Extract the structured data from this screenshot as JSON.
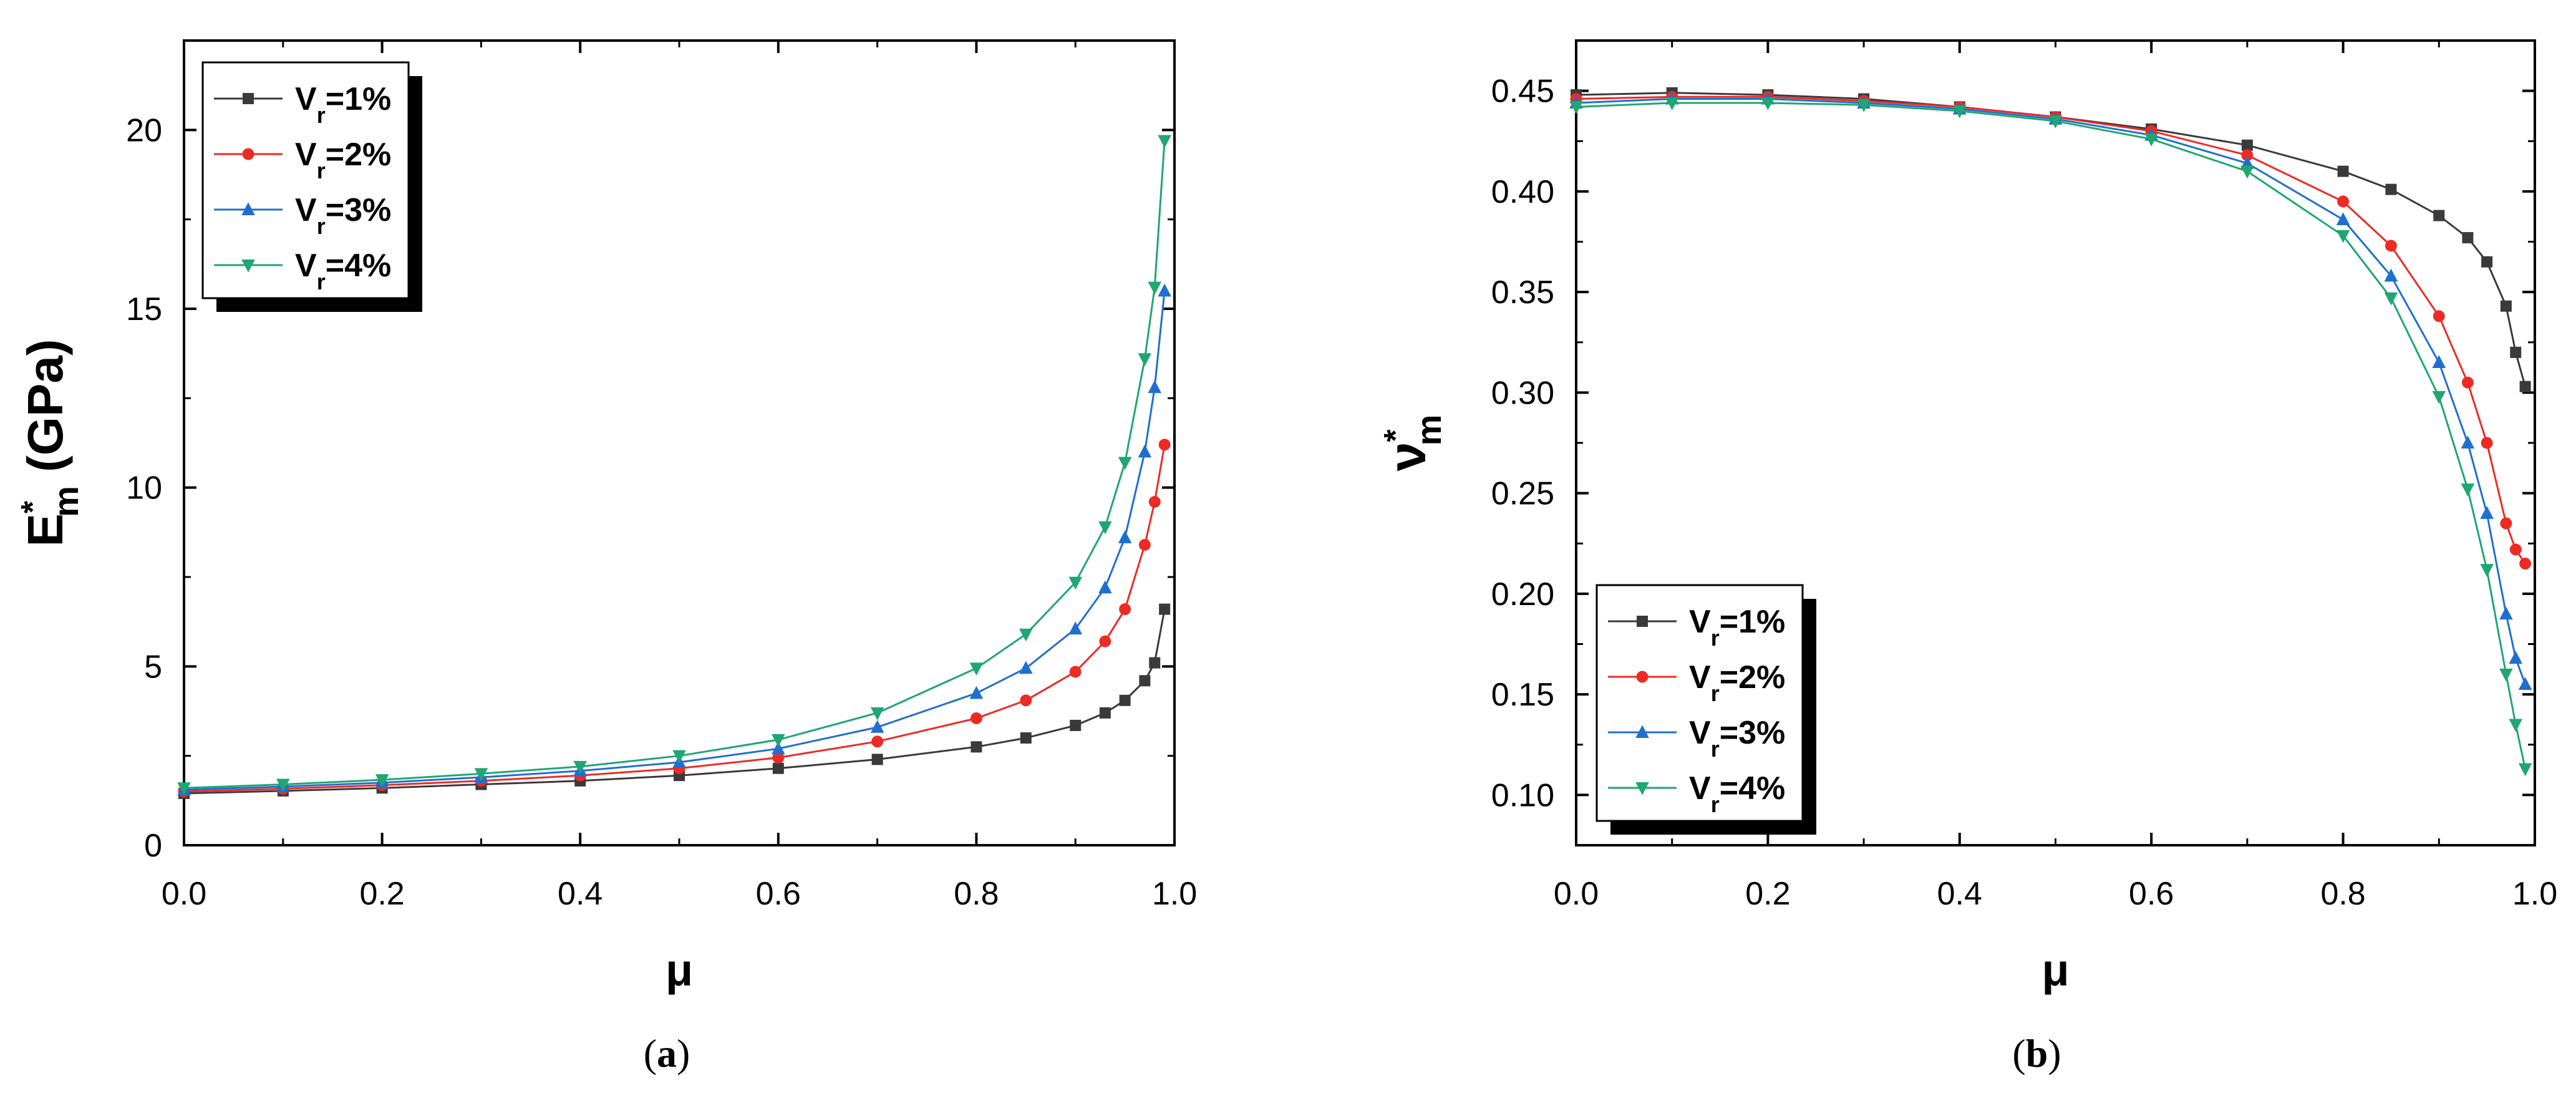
{
  "chart_data": [
    {
      "type": "line",
      "panel": "(a)",
      "panel_letter": "a",
      "xlabel": "μ",
      "ylabel_main": "E",
      "ylabel_sup": "*",
      "ylabel_sub": "m",
      "ylabel_unit": " (GPa)",
      "xlim": [
        0.0,
        1.0
      ],
      "ylim": [
        0,
        22.5
      ],
      "xticks": [
        "0.0",
        "0.2",
        "0.4",
        "0.6",
        "0.8",
        "1.0"
      ],
      "yticks": [
        "0",
        "5",
        "10",
        "15",
        "20"
      ],
      "legend_position": "top-left",
      "x": [
        0.0,
        0.1,
        0.2,
        0.3,
        0.4,
        0.5,
        0.6,
        0.7,
        0.8,
        0.85,
        0.9,
        0.93,
        0.95,
        0.97,
        0.98,
        0.99
      ],
      "series": [
        {
          "name": "Vr=1%",
          "label_main": "V",
          "label_sub": "r",
          "label_rest": "=1%",
          "color": "#3a3a3a",
          "marker": "square",
          "values": [
            1.45,
            1.52,
            1.6,
            1.7,
            1.8,
            1.95,
            2.15,
            2.4,
            2.75,
            3.0,
            3.35,
            3.7,
            4.05,
            4.6,
            5.1,
            6.6
          ]
        },
        {
          "name": "Vr=2%",
          "label_main": "V",
          "label_sub": "r",
          "label_rest": "=2%",
          "color": "#ee2a24",
          "marker": "circle",
          "values": [
            1.5,
            1.58,
            1.68,
            1.8,
            1.95,
            2.15,
            2.45,
            2.9,
            3.55,
            4.05,
            4.85,
            5.7,
            6.6,
            8.4,
            9.6,
            11.2
          ]
        },
        {
          "name": "Vr=3%",
          "label_main": "V",
          "label_sub": "r",
          "label_rest": "=3%",
          "color": "#1f6fd1",
          "marker": "triangle-up",
          "values": [
            1.55,
            1.64,
            1.75,
            1.9,
            2.08,
            2.32,
            2.7,
            3.3,
            4.25,
            4.95,
            6.05,
            7.2,
            8.6,
            11.0,
            12.8,
            15.5
          ]
        },
        {
          "name": "Vr=4%",
          "label_main": "V",
          "label_sub": "r",
          "label_rest": "=4%",
          "color": "#1fa672",
          "marker": "triangle-down",
          "values": [
            1.6,
            1.7,
            1.83,
            2.0,
            2.2,
            2.5,
            2.95,
            3.7,
            4.95,
            5.9,
            7.35,
            8.9,
            10.7,
            13.6,
            15.6,
            19.7
          ]
        }
      ]
    },
    {
      "type": "line",
      "panel": "(b)",
      "panel_letter": "b",
      "xlabel": "μ",
      "ylabel_main": "ν",
      "ylabel_sup": "*",
      "ylabel_sub": "m",
      "ylabel_unit": "",
      "xlim": [
        0.0,
        1.0
      ],
      "ylim": [
        0.075,
        0.475
      ],
      "xticks": [
        "0.0",
        "0.2",
        "0.4",
        "0.6",
        "0.8",
        "1.0"
      ],
      "yticks": [
        "0.10",
        "0.15",
        "0.20",
        "0.25",
        "0.30",
        "0.35",
        "0.40",
        "0.45"
      ],
      "legend_position": "bottom-left",
      "x": [
        0.0,
        0.1,
        0.2,
        0.3,
        0.4,
        0.5,
        0.6,
        0.7,
        0.8,
        0.85,
        0.9,
        0.93,
        0.95,
        0.97,
        0.98,
        0.99
      ],
      "series": [
        {
          "name": "Vr=1%",
          "label_main": "V",
          "label_sub": "r",
          "label_rest": "=1%",
          "color": "#3a3a3a",
          "marker": "square",
          "values": [
            0.448,
            0.449,
            0.448,
            0.446,
            0.442,
            0.437,
            0.431,
            0.423,
            0.41,
            0.401,
            0.388,
            0.377,
            0.365,
            0.343,
            0.32,
            0.303
          ]
        },
        {
          "name": "Vr=2%",
          "label_main": "V",
          "label_sub": "r",
          "label_rest": "=2%",
          "color": "#ee2a24",
          "marker": "circle",
          "values": [
            0.446,
            0.447,
            0.447,
            0.445,
            0.442,
            0.437,
            0.43,
            0.418,
            0.395,
            0.373,
            0.338,
            0.305,
            0.275,
            0.235,
            0.222,
            0.215
          ]
        },
        {
          "name": "Vr=3%",
          "label_main": "V",
          "label_sub": "r",
          "label_rest": "=3%",
          "color": "#1f6fd1",
          "marker": "triangle-up",
          "values": [
            0.444,
            0.446,
            0.446,
            0.444,
            0.441,
            0.436,
            0.428,
            0.414,
            0.386,
            0.358,
            0.315,
            0.275,
            0.24,
            0.19,
            0.168,
            0.155
          ]
        },
        {
          "name": "Vr=4%",
          "label_main": "V",
          "label_sub": "r",
          "label_rest": "=4%",
          "color": "#1fa672",
          "marker": "triangle-down",
          "values": [
            0.442,
            0.444,
            0.444,
            0.443,
            0.44,
            0.435,
            0.426,
            0.41,
            0.378,
            0.347,
            0.298,
            0.252,
            0.212,
            0.16,
            0.135,
            0.113
          ]
        }
      ]
    }
  ]
}
